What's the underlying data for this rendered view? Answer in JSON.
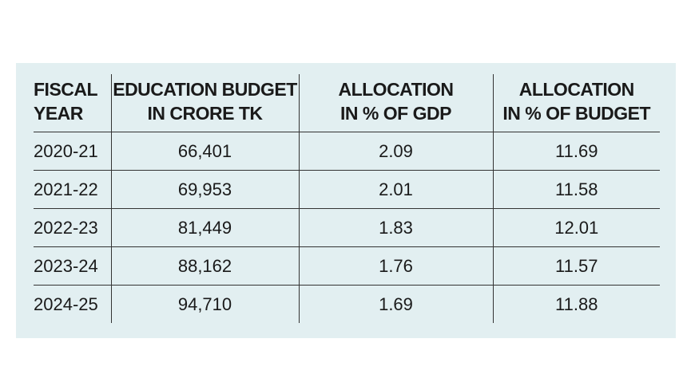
{
  "chart_data": {
    "type": "table",
    "columns": [
      "FISCAL YEAR",
      "EDUCATION BUDGET IN CRORE TK",
      "ALLOCATION IN % OF GDP",
      "ALLOCATION IN % OF BUDGET"
    ],
    "header_lines": [
      [
        "FISCAL",
        "YEAR"
      ],
      [
        "EDUCATION BUDGET",
        "IN CRORE TK"
      ],
      [
        "ALLOCATION",
        "IN % OF GDP"
      ],
      [
        "ALLOCATION",
        "IN % OF BUDGET"
      ]
    ],
    "rows": [
      [
        "2020-21",
        "66,401",
        "2.09",
        "11.69"
      ],
      [
        "2021-22",
        "69,953",
        "2.01",
        "11.58"
      ],
      [
        "2022-23",
        "81,449",
        "1.83",
        "12.01"
      ],
      [
        "2023-24",
        "88,162",
        "1.76",
        "11.57"
      ],
      [
        "2024-25",
        "94,710",
        "1.69",
        "11.88"
      ]
    ]
  },
  "colors": {
    "panel_background": "#e2eff1",
    "text": "#1a1a1a",
    "rules": "#333333"
  }
}
